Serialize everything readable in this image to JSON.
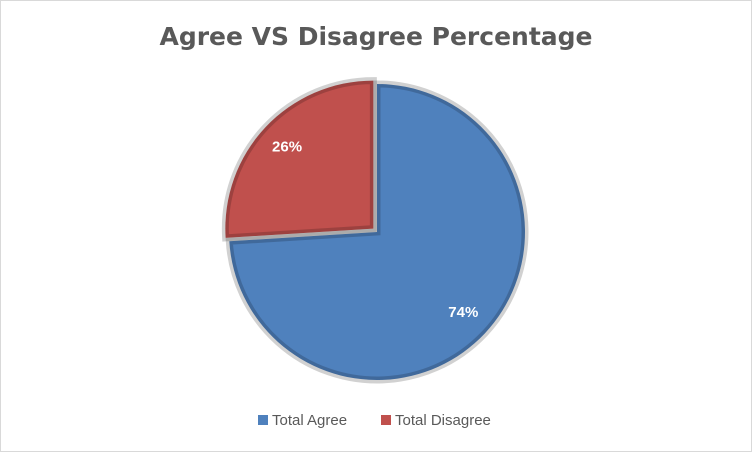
{
  "chart_data": {
    "type": "pie",
    "title": "Agree VS Disagree Percentage",
    "categories": [
      "Total Agree",
      "Total Disagree"
    ],
    "values": [
      74,
      26
    ],
    "value_labels": [
      "74%",
      "26%"
    ],
    "colors": [
      "#4f81bd",
      "#c0504d"
    ],
    "legend": "bottom"
  }
}
